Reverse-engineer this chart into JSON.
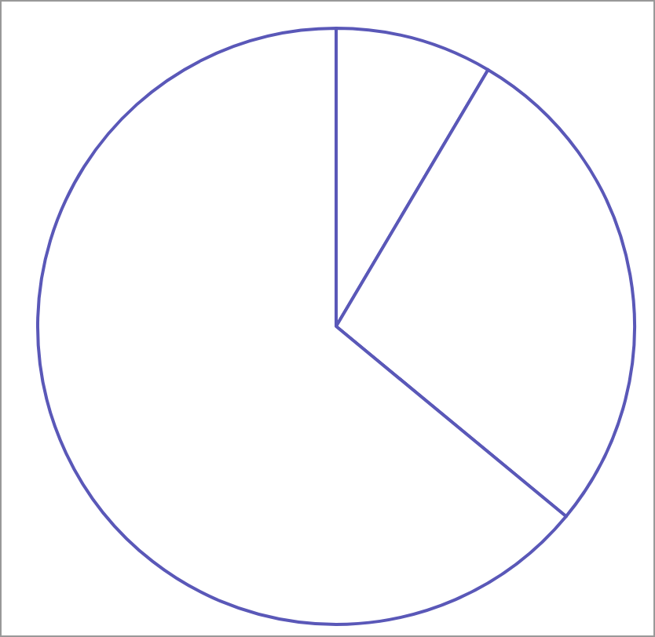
{
  "chart_data": {
    "type": "pie",
    "categories": [
      null,
      null,
      null
    ],
    "values": [
      8.5,
      27.5,
      64
    ],
    "colors": [
      "#ffffff",
      "#ffffff",
      "#ffffff"
    ]
  }
}
